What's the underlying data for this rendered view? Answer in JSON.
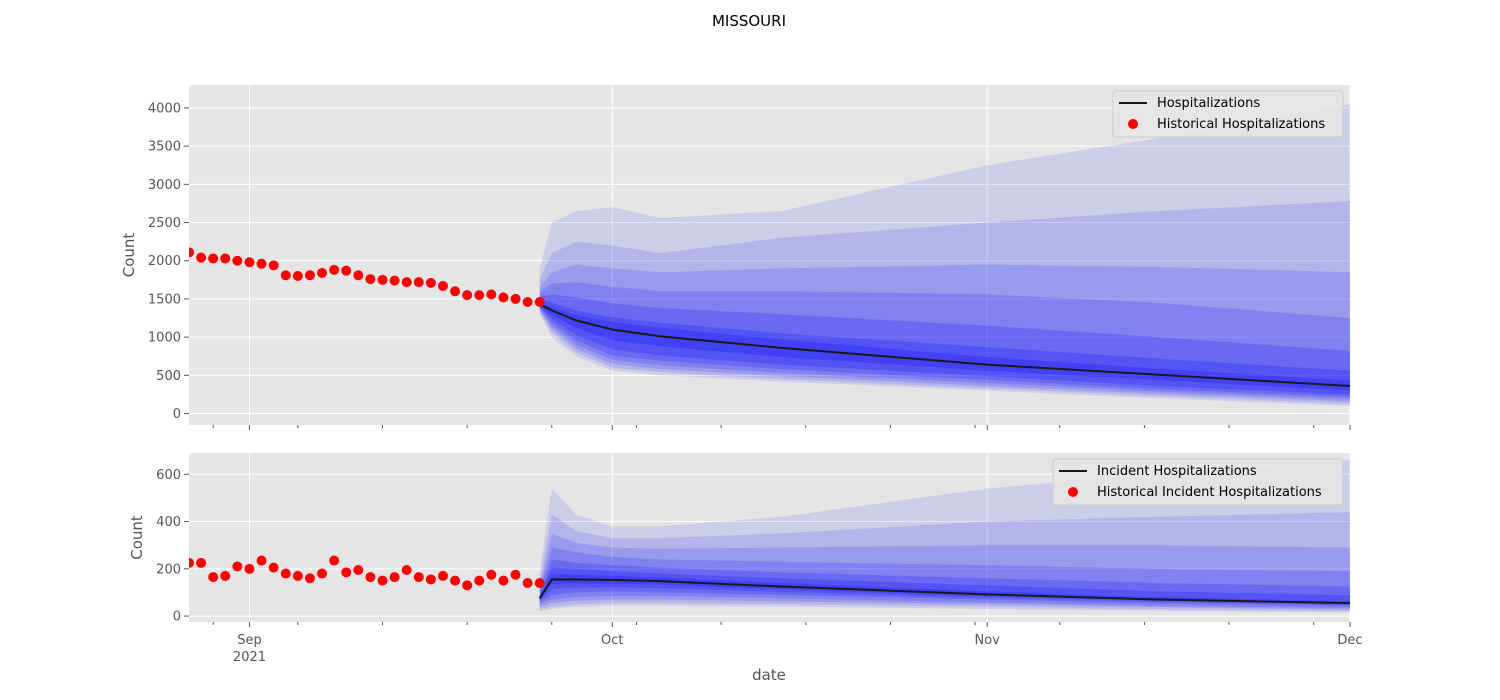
{
  "figure_title": "MISSOURI",
  "colors": {
    "panel_bg": "#e5e5e5",
    "grid": "#ffffff",
    "band": "#0000ff",
    "median": "#1a1a1a",
    "historical": "#ff0000",
    "tick_text": "#555555"
  },
  "shared_x": {
    "label": "date",
    "domain": [
      "2021-08-27",
      "2021-12-01"
    ],
    "ticks": [
      {
        "date": "2021-09-01",
        "label": "Sep",
        "sublabel": "2021"
      },
      {
        "date": "2021-10-01",
        "label": "Oct",
        "sublabel": ""
      },
      {
        "date": "2021-11-01",
        "label": "Nov",
        "sublabel": ""
      },
      {
        "date": "2021-12-01",
        "label": "Dec",
        "sublabel": ""
      }
    ]
  },
  "chart_data": [
    {
      "type": "line",
      "ylabel": "Count",
      "ylim": [
        -150,
        4300
      ],
      "yticks": [
        0,
        500,
        1000,
        1500,
        2000,
        2500,
        3000,
        3500,
        4000
      ],
      "grid": true,
      "legend_position": "top-right",
      "legend": [
        "Hospitalizations",
        "Historical Hospitalizations"
      ],
      "historical": {
        "name": "Historical Hospitalizations",
        "start": "2021-08-27",
        "values": [
          2110,
          2040,
          2030,
          2030,
          2000,
          1980,
          1960,
          1940,
          1810,
          1800,
          1810,
          1840,
          1880,
          1870,
          1810,
          1760,
          1750,
          1740,
          1720,
          1720,
          1710,
          1670,
          1600,
          1550,
          1550,
          1560,
          1520,
          1500,
          1460,
          1460
        ]
      },
      "forecast": {
        "name": "Hospitalizations",
        "x": [
          "2021-09-25",
          "2021-09-26",
          "2021-09-28",
          "2021-10-01",
          "2021-10-05",
          "2021-10-15",
          "2021-11-01",
          "2021-11-15",
          "2021-12-01"
        ],
        "median": [
          1430,
          1350,
          1220,
          1100,
          1010,
          860,
          640,
          510,
          360
        ],
        "bands": [
          {
            "lower": [
              1300,
              1000,
              750,
              560,
              500,
              420,
              300,
              200,
              100
            ],
            "upper": [
              1900,
              2500,
              2650,
              2700,
              2560,
              2650,
              3250,
              3600,
              4050
            ]
          },
          {
            "lower": [
              1330,
              1060,
              800,
              600,
              540,
              450,
              330,
              230,
              130
            ],
            "upper": [
              1750,
              2100,
              2250,
              2200,
              2100,
              2300,
              2500,
              2650,
              2780
            ]
          },
          {
            "lower": [
              1350,
              1110,
              850,
              650,
              580,
              490,
              360,
              260,
              160
            ],
            "upper": [
              1650,
              1850,
              1950,
              1900,
              1850,
              1900,
              1950,
              1920,
              1850
            ]
          },
          {
            "lower": [
              1370,
              1150,
              900,
              700,
              630,
              530,
              400,
              290,
              190
            ],
            "upper": [
              1580,
              1700,
              1720,
              1660,
              1600,
              1600,
              1560,
              1450,
              1250
            ]
          },
          {
            "lower": [
              1385,
              1190,
              960,
              760,
              690,
              580,
              440,
              320,
              220
            ],
            "upper": [
              1540,
              1560,
              1520,
              1440,
              1380,
              1300,
              1150,
              1000,
              820
            ]
          },
          {
            "lower": [
              1400,
              1240,
              1030,
              840,
              760,
              640,
              490,
              360,
              250
            ],
            "upper": [
              1490,
              1450,
              1350,
              1260,
              1190,
              1050,
              870,
              720,
              560
            ]
          },
          {
            "lower": [
              1415,
              1290,
              1120,
              960,
              880,
              740,
              560,
              440,
              300
            ],
            "upper": [
              1450,
              1400,
              1290,
              1200,
              1120,
              970,
              740,
              590,
              430
            ]
          }
        ]
      }
    },
    {
      "type": "line",
      "ylabel": "Count",
      "ylim": [
        -25,
        690
      ],
      "yticks": [
        0,
        200,
        400,
        600
      ],
      "grid": true,
      "legend_position": "top-right",
      "legend": [
        "Incident Hospitalizations",
        "Historical Incident Hospitalizations"
      ],
      "historical": {
        "name": "Historical Incident Hospitalizations",
        "start": "2021-08-27",
        "values": [
          225,
          225,
          165,
          170,
          210,
          200,
          235,
          205,
          180,
          170,
          160,
          180,
          235,
          185,
          195,
          165,
          150,
          165,
          195,
          165,
          155,
          170,
          150,
          130,
          150,
          175,
          150,
          175,
          140,
          140
        ]
      },
      "forecast": {
        "name": "Incident Hospitalizations",
        "x": [
          "2021-09-25",
          "2021-09-26",
          "2021-09-28",
          "2021-10-01",
          "2021-10-05",
          "2021-10-15",
          "2021-11-01",
          "2021-11-15",
          "2021-12-01"
        ],
        "median": [
          75,
          155,
          155,
          153,
          148,
          125,
          92,
          70,
          55
        ],
        "bands": [
          {
            "lower": [
              20,
              30,
              40,
              45,
              45,
              40,
              30,
              22,
              15
            ],
            "upper": [
              190,
              540,
              430,
              380,
              380,
              420,
              540,
              600,
              660
            ]
          },
          {
            "lower": [
              30,
              40,
              50,
              55,
              55,
              50,
              40,
              30,
              22
            ],
            "upper": [
              150,
              430,
              360,
              330,
              330,
              350,
              400,
              420,
              440
            ]
          },
          {
            "lower": [
              40,
              55,
              65,
              70,
              70,
              62,
              50,
              38,
              28
            ],
            "upper": [
              125,
              350,
              310,
              290,
              285,
              290,
              300,
              300,
              290
            ]
          },
          {
            "lower": [
              50,
              70,
              80,
              85,
              85,
              75,
              58,
              45,
              34
            ],
            "upper": [
              110,
              290,
              270,
              250,
              240,
              230,
              215,
              200,
              190
            ]
          },
          {
            "lower": [
              58,
              90,
              100,
              105,
              100,
              90,
              70,
              55,
              42
            ],
            "upper": [
              95,
              240,
              225,
              215,
              205,
              185,
              160,
              140,
              125
            ]
          },
          {
            "lower": [
              65,
              115,
              120,
              122,
              118,
              102,
              78,
              62,
              48
            ],
            "upper": [
              88,
              205,
              200,
              190,
              180,
              160,
              130,
              105,
              88
            ]
          },
          {
            "lower": [
              70,
              135,
              138,
              137,
              133,
              114,
              85,
              66,
              51
            ],
            "upper": [
              82,
              178,
              175,
              170,
              164,
              140,
              105,
              80,
              63
            ]
          }
        ]
      }
    }
  ]
}
